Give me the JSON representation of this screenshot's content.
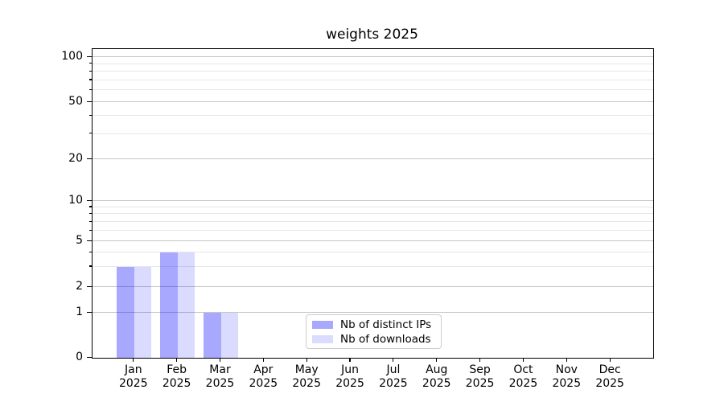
{
  "chart_data": {
    "type": "bar",
    "title": "weights 2025",
    "categories": [
      {
        "month": "Jan",
        "year": "2025"
      },
      {
        "month": "Feb",
        "year": "2025"
      },
      {
        "month": "Mar",
        "year": "2025"
      },
      {
        "month": "Apr",
        "year": "2025"
      },
      {
        "month": "May",
        "year": "2025"
      },
      {
        "month": "Jun",
        "year": "2025"
      },
      {
        "month": "Jul",
        "year": "2025"
      },
      {
        "month": "Aug",
        "year": "2025"
      },
      {
        "month": "Sep",
        "year": "2025"
      },
      {
        "month": "Oct",
        "year": "2025"
      },
      {
        "month": "Nov",
        "year": "2025"
      },
      {
        "month": "Dec",
        "year": "2025"
      }
    ],
    "series": [
      {
        "name": "Nb of distinct IPs",
        "color": "#0000ff57",
        "solid_color": "#a9a9fa",
        "values": [
          3,
          4,
          1,
          0,
          0,
          0,
          0,
          0,
          0,
          0,
          0,
          0
        ]
      },
      {
        "name": "Nb of downloads",
        "color": "#0000ff24",
        "solid_color": "#dbdbfa",
        "values": [
          3,
          4,
          1,
          0,
          0,
          0,
          0,
          0,
          0,
          0,
          0,
          0
        ]
      }
    ],
    "yticks": [
      0,
      1,
      2,
      5,
      10,
      20,
      50,
      100
    ],
    "ylim": [
      0,
      115
    ],
    "yscale": "asinh",
    "grid": true,
    "legend_position": "lower center",
    "axis_color": "#000000",
    "major_grid_color": "#c6c6c6",
    "minor_grid_color": "#e7e7e7"
  }
}
